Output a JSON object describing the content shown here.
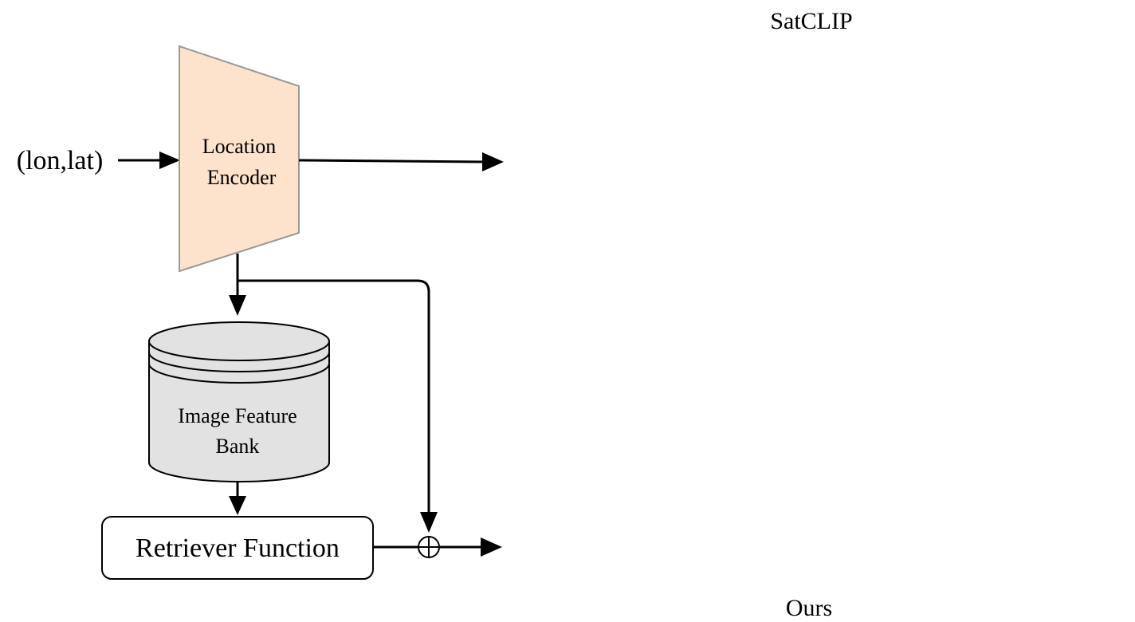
{
  "input": {
    "label": "(lon,lat)"
  },
  "encoder": {
    "line1": "Location",
    "line2": "Encoder",
    "fill": "#fde3cc",
    "stroke": "#999999"
  },
  "feature_bank": {
    "line1": "Image Feature",
    "line2": "Bank",
    "fill": "#e2e2e2"
  },
  "retriever": {
    "label": "Retriever Function"
  },
  "combine_op": {
    "symbol": "⊕"
  },
  "maps": {
    "top": {
      "caption": "SatCLIP"
    },
    "bottom": {
      "caption": "Ours"
    }
  }
}
